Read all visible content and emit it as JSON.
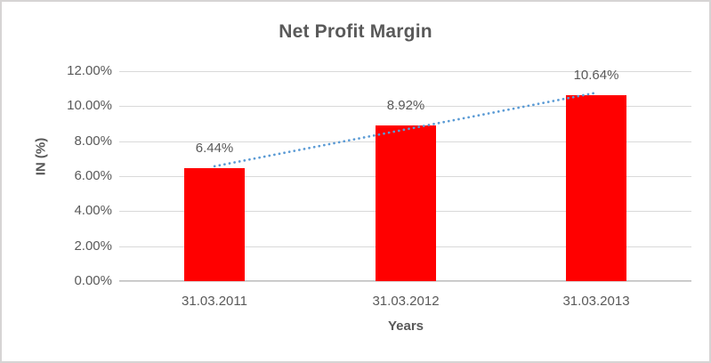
{
  "chart_data": {
    "type": "bar",
    "title": "Net Profit Margin",
    "xlabel": "Years",
    "ylabel": "IN (%)",
    "categories": [
      "31.03.2011",
      "31.03.2012",
      "31.03.2013"
    ],
    "values": [
      6.44,
      8.92,
      10.64
    ],
    "data_labels": [
      "6.44%",
      "8.92%",
      "10.64%"
    ],
    "ytick_values": [
      0,
      2,
      4,
      6,
      8,
      10,
      12
    ],
    "ytick_labels": [
      "0.00%",
      "2.00%",
      "4.00%",
      "6.00%",
      "8.00%",
      "10.00%",
      "12.00%"
    ],
    "ylim": [
      0,
      12
    ],
    "grid": true,
    "legend": "none",
    "trendline": {
      "kind": "linear",
      "style": "dotted"
    },
    "colors": {
      "bar": "#ff0000",
      "trendline": "#5b9bd5",
      "title_text": "#595959",
      "axis_text": "#595959",
      "gridline": "#d9d9d9",
      "axis_line": "#bfbfbf",
      "frame_border": "#d6d4d4",
      "background": "#ffffff"
    }
  }
}
